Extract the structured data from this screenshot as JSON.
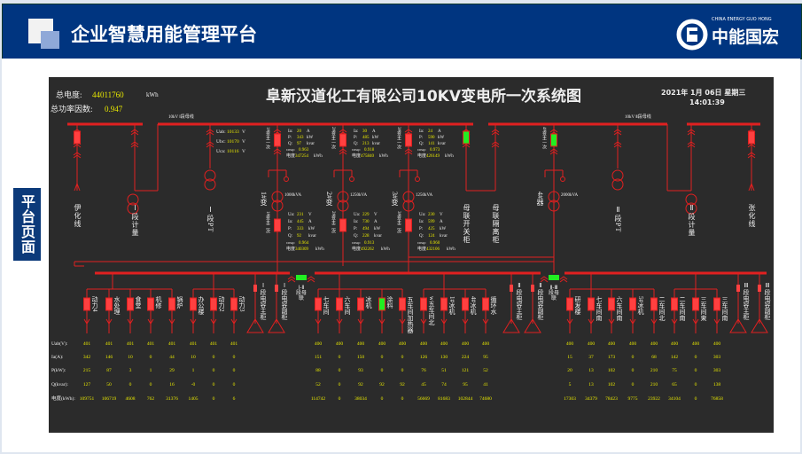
{
  "header": {
    "title": "企业智慧用能管理平台",
    "logo_en": "CHINA ENERGY GUO HONG",
    "logo_cn": "中能国宏"
  },
  "sidebar": {
    "label": "平台页面"
  },
  "diagram": {
    "title": "阜新汉道化工有限公司10KV变电所一次系统图",
    "total_energy_label": "总电度:",
    "total_energy": "44011760",
    "total_energy_unit": "kWh",
    "pf_label": "总功率因数:",
    "pf": "0.947",
    "date": "2021年 1月 06日 星期三",
    "time": "14:01:39",
    "bus_label_1": "10kV Ⅰ段母线",
    "bus_label_2": "10kV Ⅱ段母线",
    "pt_readings": [
      {
        "label": "Uab:",
        "value": "10133",
        "unit": "V"
      },
      {
        "label": "Ubc:",
        "value": "10170",
        "unit": "V"
      },
      {
        "label": "Uca:",
        "value": "10116",
        "unit": "V"
      }
    ],
    "top_feeders": [
      "伊化线",
      "Ⅰ段计量",
      "Ⅰ段PT",
      "母联开关柜",
      "母联隔离柜",
      "Ⅱ段PT",
      "Ⅱ段计量",
      "张化线"
    ],
    "transformers": [
      {
        "name": "1#变",
        "capacity": "1000kVA",
        "hv_label": "1#变主一次",
        "lv_label": "1#变主二次",
        "hv": {
          "Ia": "20",
          "P": "343",
          "Q": "97",
          "cos": "0.963",
          "kwh": "347254"
        },
        "lv": {
          "Ua": "231",
          "Ia": "445",
          "P": "333",
          "Q": "92",
          "cos": "0.964",
          "kwh": "340309"
        }
      },
      {
        "name": "2#变",
        "capacity": "1250kVA",
        "hv_label": "2#变主一次",
        "lv_label": "2#变主二次",
        "hv": {
          "Ia": "30",
          "P": "485",
          "Q": "213",
          "cos": "0.918",
          "kwh": "475840"
        },
        "lv": {
          "Ua": "229",
          "Ia": "730",
          "P": "494",
          "Q": "228",
          "cos": "0.913",
          "kwh": "492262"
        }
      },
      {
        "name": "3#变",
        "capacity": "1250kVA",
        "hv_label": "3#变主一次",
        "lv_label": "3#变主二次",
        "hv": {
          "Ia": "24",
          "P": "590",
          "Q": "141",
          "cos": "0.973",
          "kwh": "426149"
        },
        "lv": {
          "Ua": "230",
          "Ia": "599",
          "P": "425",
          "Q": "124",
          "cos": "0.960",
          "kwh": "432106"
        }
      },
      {
        "name": "4#器",
        "capacity": "2000kVA",
        "hv_label": "4#变主一次"
      }
    ],
    "reading_labels": {
      "Ua": "Ua:",
      "Ia": "Ia:",
      "P": "P:",
      "Q": "Q:",
      "cos": "cosφ:",
      "kwh": "电度",
      "u_unit": "V",
      "i_unit": "A",
      "p_unit": "kW",
      "q_unit": "kvar",
      "e_unit": "kWh"
    },
    "ties": [
      "Ⅰ-Ⅱ段母联",
      "Ⅱ-Ⅲ段母联"
    ],
    "colors": {
      "line": "#e02020",
      "breaker_closed": "#ff4040",
      "breaker_open": "#22ee22",
      "value": "#e8e800"
    }
  },
  "table": {
    "row_labels": [
      "Uab(V):",
      "Ia(A):",
      "P(kW):",
      "Q(kvar):",
      "电度(kWh):"
    ],
    "feeders": [
      {
        "name": "动力4",
        "state": "closed",
        "vals": [
          "401",
          "342",
          "215",
          "127",
          "109751"
        ]
      },
      {
        "name": "水处理",
        "state": "closed",
        "vals": [
          "401",
          "146",
          "87",
          "50",
          "106719"
        ]
      },
      {
        "name": "食堂",
        "state": "closed",
        "vals": [
          "401",
          "10",
          "3",
          "0",
          "4608"
        ]
      },
      {
        "name": "机修",
        "state": "closed",
        "vals": [
          "401",
          "0",
          "1",
          "0",
          "762"
        ]
      },
      {
        "name": "锅炉",
        "state": "closed",
        "vals": [
          "401",
          "44",
          "29",
          "16",
          "31376"
        ]
      },
      {
        "name": "办公楼",
        "state": "closed",
        "vals": [
          "401",
          "10",
          "1",
          "-0",
          "1405"
        ]
      },
      {
        "name": "动力2",
        "state": "closed",
        "vals": [
          "401",
          "0",
          "0",
          "0",
          "0"
        ]
      },
      {
        "name": "动力3",
        "state": "closed",
        "vals": [
          "401",
          "0",
          "0",
          "0",
          "6"
        ]
      },
      {
        "name": "Ⅰ段电容主柜",
        "type": "cap"
      },
      {
        "name": "Ⅰ段电容副柜",
        "type": "cap"
      },
      {
        "name": "七车间",
        "state": "closed",
        "vals": [
          "400",
          "151",
          "88",
          "52",
          "114742"
        ]
      },
      {
        "name": "六车间",
        "state": "closed",
        "vals": [
          "400",
          "0",
          "0",
          "0",
          "0"
        ]
      },
      {
        "name": "冰机",
        "state": "closed",
        "vals": [
          "400",
          "150",
          "93",
          "92",
          "38034"
        ]
      },
      {
        "name": "涂料",
        "state": "open",
        "vals": [
          "400",
          "0",
          "0",
          "92",
          "0"
        ]
      },
      {
        "name": "五车间加热器",
        "state": "closed",
        "vals": [
          "400",
          "0",
          "0",
          "92",
          "0"
        ]
      },
      {
        "name": "w五车间北",
        "state": "closed",
        "vals": [
          "400",
          "126",
          "76",
          "45",
          "56669"
        ]
      },
      {
        "name": "1#冰机",
        "state": "closed",
        "vals": [
          "400",
          "130",
          "51",
          "74",
          "81683"
        ]
      },
      {
        "name": "4#冰机",
        "state": "closed",
        "vals": [
          "400",
          "224",
          "121",
          "95",
          "102844"
        ]
      },
      {
        "name": "循环水",
        "state": "closed",
        "vals": [
          "400",
          "95",
          "52",
          "41",
          "74680"
        ]
      },
      {
        "name": "Ⅱ段电容主柜",
        "type": "cap"
      },
      {
        "name": "Ⅱ段电容副柜",
        "type": "cap"
      },
      {
        "name": "研发楼",
        "state": "closed",
        "vals": [
          "400",
          "15",
          "20",
          "5",
          "17303"
        ]
      },
      {
        "name": "七车间南",
        "state": "closed",
        "vals": [
          "400",
          "37",
          "13",
          "13",
          "34379"
        ]
      },
      {
        "name": "六车间南",
        "state": "closed",
        "vals": [
          "400",
          "173",
          "102",
          "102",
          "78423"
        ]
      },
      {
        "name": "5#冰机",
        "state": "closed",
        "vals": [
          "400",
          "0",
          "0",
          "0",
          "9775"
        ]
      },
      {
        "name": "二车间北",
        "state": "closed",
        "vals": [
          "400",
          "68",
          "210",
          "210",
          "23922"
        ]
      },
      {
        "name": "二车间南",
        "state": "closed",
        "vals": [
          "400",
          "142",
          "75",
          "65",
          "34104"
        ]
      },
      {
        "name": "三车间東",
        "state": "closed",
        "vals": [
          "400",
          "0",
          "0",
          "0",
          "0"
        ]
      },
      {
        "name": "三车间南",
        "state": "closed",
        "vals": [
          "400",
          "303",
          "303",
          "138",
          "76858"
        ]
      },
      {
        "name": "Ⅲ段电容主柜",
        "type": "cap"
      },
      {
        "name": "Ⅲ段电容副柜",
        "type": "cap"
      }
    ]
  }
}
